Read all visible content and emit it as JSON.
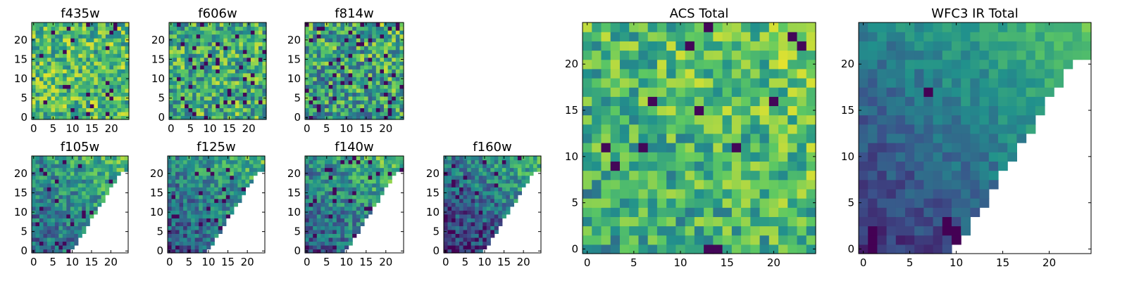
{
  "chart_data": [
    {
      "id": "f435w",
      "type": "heatmap",
      "title": "f435w",
      "shape": "full",
      "n": 25,
      "seed": 11,
      "base": 0.68,
      "spread": 0.28,
      "gradient": 0.0,
      "dark_rate": 0.04,
      "xticks": [
        0,
        5,
        10,
        15,
        20
      ],
      "yticks": [
        0,
        5,
        10,
        15,
        20
      ],
      "xlim": [
        0,
        25
      ],
      "ylim": [
        0,
        25
      ]
    },
    {
      "id": "f606w",
      "type": "heatmap",
      "title": "f606w",
      "shape": "full",
      "n": 25,
      "seed": 23,
      "base": 0.62,
      "spread": 0.3,
      "gradient": 0.0,
      "dark_rate": 0.05,
      "xticks": [
        0,
        5,
        10,
        15,
        20
      ],
      "yticks": [
        0,
        5,
        10,
        15,
        20
      ],
      "xlim": [
        0,
        25
      ],
      "ylim": [
        0,
        25
      ]
    },
    {
      "id": "f814w",
      "type": "heatmap",
      "title": "f814w",
      "shape": "full",
      "n": 25,
      "seed": 37,
      "base": 0.56,
      "spread": 0.32,
      "gradient": 0.12,
      "dark_rate": 0.07,
      "xticks": [
        0,
        5,
        10,
        15,
        20
      ],
      "yticks": [
        0,
        5,
        10,
        15,
        20
      ],
      "xlim": [
        0,
        25
      ],
      "ylim": [
        0,
        25
      ]
    },
    {
      "id": "f105w",
      "type": "heatmap",
      "title": "f105w",
      "shape": "triangle",
      "n": 25,
      "seed": 41,
      "base": 0.45,
      "spread": 0.22,
      "gradient": 0.42,
      "dark_rate": 0.05,
      "xticks": [
        0,
        5,
        10,
        15,
        20
      ],
      "yticks": [
        0,
        5,
        10,
        15,
        20
      ],
      "xlim": [
        0,
        25
      ],
      "ylim": [
        0,
        25
      ]
    },
    {
      "id": "f125w",
      "type": "heatmap",
      "title": "f125w",
      "shape": "triangle",
      "n": 25,
      "seed": 53,
      "base": 0.4,
      "spread": 0.22,
      "gradient": 0.45,
      "dark_rate": 0.05,
      "xticks": [
        0,
        5,
        10,
        15,
        20
      ],
      "yticks": [
        0,
        5,
        10,
        15,
        20
      ],
      "xlim": [
        0,
        25
      ],
      "ylim": [
        0,
        25
      ]
    },
    {
      "id": "f140w",
      "type": "heatmap",
      "title": "f140w",
      "shape": "triangle",
      "n": 25,
      "seed": 67,
      "base": 0.42,
      "spread": 0.22,
      "gradient": 0.48,
      "dark_rate": 0.04,
      "xticks": [
        0,
        5,
        10,
        15,
        20
      ],
      "yticks": [
        0,
        5,
        10,
        15,
        20
      ],
      "xlim": [
        0,
        25
      ],
      "ylim": [
        0,
        25
      ]
    },
    {
      "id": "f160w",
      "type": "heatmap",
      "title": "f160w",
      "shape": "triangle",
      "n": 25,
      "seed": 79,
      "base": 0.3,
      "spread": 0.22,
      "gradient": 0.6,
      "dark_rate": 0.06,
      "xticks": [
        0,
        5,
        10,
        15,
        20
      ],
      "yticks": [
        0,
        5,
        10,
        15,
        20
      ],
      "xlim": [
        0,
        25
      ],
      "ylim": [
        0,
        25
      ]
    },
    {
      "id": "acs_total",
      "type": "heatmap",
      "title": "ACS Total",
      "shape": "full",
      "n": 25,
      "seed": 97,
      "base": 0.64,
      "spread": 0.24,
      "gradient": 0.18,
      "dark_rate": 0.03,
      "xticks": [
        0,
        5,
        10,
        15,
        20
      ],
      "yticks": [
        0,
        5,
        10,
        15,
        20
      ],
      "xlim": [
        0,
        25
      ],
      "ylim": [
        0,
        25
      ]
    },
    {
      "id": "wfc3_ir_total",
      "type": "heatmap",
      "title": "WFC3 IR Total",
      "shape": "triangle",
      "n": 25,
      "seed": 101,
      "base": 0.34,
      "spread": 0.1,
      "gradient": 0.62,
      "dark_rate": 0.0,
      "dark_cells": [
        [
          1,
          0
        ],
        [
          1,
          1
        ],
        [
          1,
          2
        ],
        [
          9,
          3
        ],
        [
          9,
          2
        ],
        [
          10,
          0
        ],
        [
          10,
          1
        ],
        [
          10,
          2
        ],
        [
          7,
          17
        ]
      ],
      "xticks": [
        0,
        5,
        10,
        15,
        20
      ],
      "yticks": [
        0,
        5,
        10,
        15,
        20
      ],
      "xlim": [
        0,
        25
      ],
      "ylim": [
        0,
        25
      ]
    }
  ],
  "colormap": [
    "#440154",
    "#3b528b",
    "#21918c",
    "#5ec962",
    "#fde725"
  ]
}
